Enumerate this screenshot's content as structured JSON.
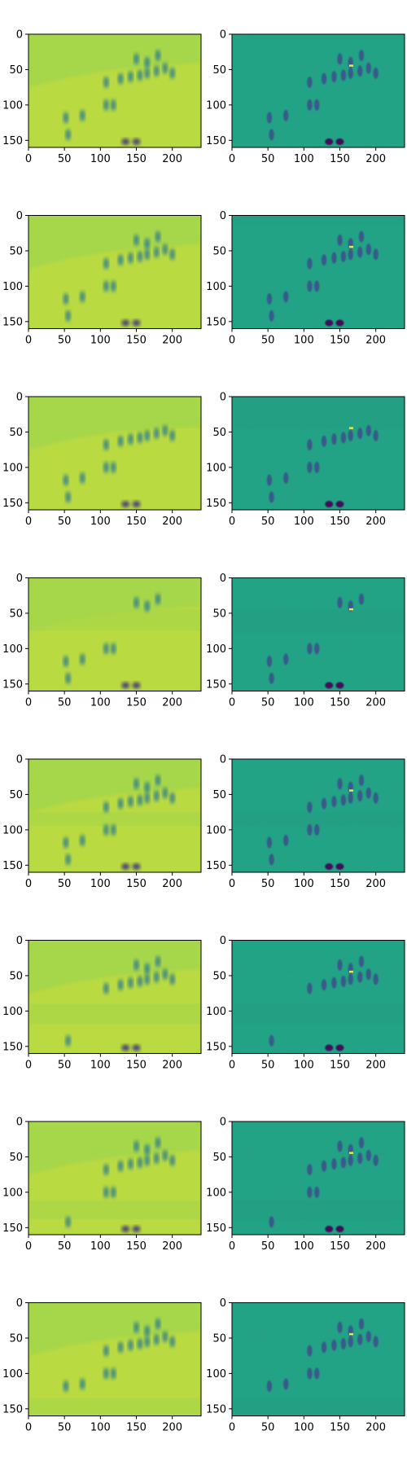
{
  "figure": {
    "rows": 8,
    "cols": 2,
    "colormap": "viridis",
    "colors": {
      "left_background": "#a6d64a",
      "left_highlight": "#c9de3a",
      "left_figure": "#2b7a8e",
      "left_dark": "#3b2b7c",
      "right_background": "#22a385",
      "right_figure": "#3b528b",
      "right_dark": "#440154",
      "right_bright": "#fde725"
    }
  },
  "chart_data": {
    "type": "heatmap",
    "x_ticks": [
      0,
      50,
      100,
      150,
      200
    ],
    "y_ticks": [
      0,
      50,
      100,
      150
    ],
    "xlim": [
      0,
      240
    ],
    "ylim": [
      160,
      0
    ],
    "y_inverted": true,
    "figures": [
      [
        52,
        118
      ],
      [
        55,
        142
      ],
      [
        75,
        115
      ],
      [
        108,
        100
      ],
      [
        118,
        100
      ],
      [
        108,
        68
      ],
      [
        128,
        63
      ],
      [
        142,
        60
      ],
      [
        155,
        58
      ],
      [
        165,
        55
      ],
      [
        178,
        52
      ],
      [
        190,
        48
      ],
      [
        200,
        55
      ],
      [
        150,
        35
      ],
      [
        165,
        40
      ],
      [
        180,
        30
      ],
      [
        135,
        152
      ],
      [
        150,
        152
      ]
    ],
    "panels": [
      {
        "row": 0,
        "left_band": null,
        "right_band": null
      },
      {
        "row": 1,
        "left_band": null,
        "right_band": [
          0,
          12
        ]
      },
      {
        "row": 2,
        "left_band": [
          25,
          45
        ],
        "right_band": [
          0,
          45
        ]
      },
      {
        "row": 3,
        "left_band": [
          45,
          75
        ],
        "right_band": [
          45,
          78
        ]
      },
      {
        "row": 4,
        "left_band": [
          75,
          95
        ],
        "right_band": [
          75,
          95
        ]
      },
      {
        "row": 5,
        "left_band": [
          90,
          118
        ],
        "right_band": [
          90,
          118
        ]
      },
      {
        "row": 6,
        "left_band": [
          112,
          138
        ],
        "right_band": [
          112,
          140
        ]
      },
      {
        "row": 7,
        "left_band": [
          135,
          160
        ],
        "right_band": [
          135,
          160
        ]
      }
    ]
  }
}
